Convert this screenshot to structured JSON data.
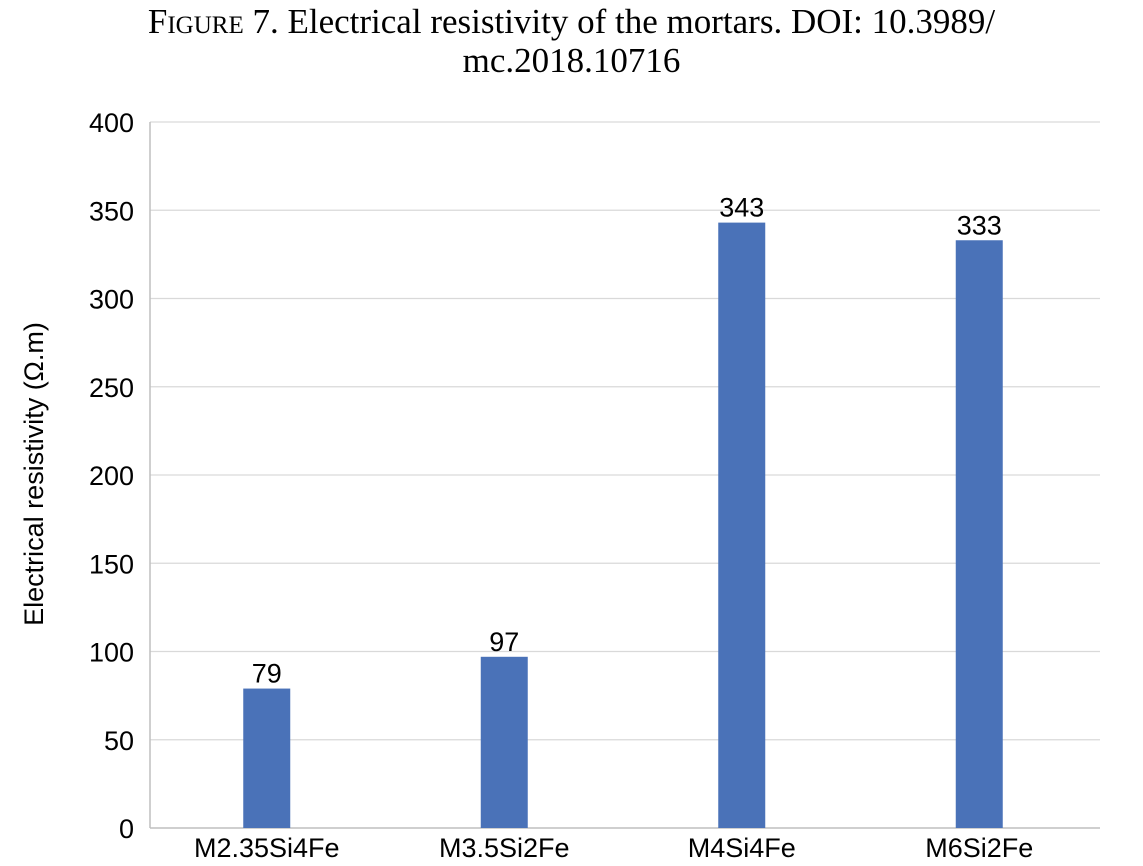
{
  "caption": {
    "label": "Figure 7.",
    "line1": " Electrical resistivity of the mortars. DOI: 10.3989/",
    "line2": "mc.2018.10716"
  },
  "colors": {
    "bar": "#4a72b8",
    "grid": "#d9d9d9",
    "axis": "#bfbfbf",
    "text": "#000000"
  },
  "chart_data": {
    "type": "bar",
    "title": "",
    "xlabel": "",
    "ylabel": "Electrical resistivity (Ω.m)",
    "categories": [
      "M2.35Si4Fe",
      "M3.5Si2Fe",
      "M4Si4Fe",
      "M6Si2Fe"
    ],
    "values": [
      79,
      97,
      343,
      333
    ],
    "data_labels": [
      "79",
      "97",
      "343",
      "333"
    ],
    "ylim": [
      0,
      400
    ],
    "yticks": [
      0,
      50,
      100,
      150,
      200,
      250,
      300,
      350,
      400
    ],
    "grid": true,
    "legend": "none"
  }
}
